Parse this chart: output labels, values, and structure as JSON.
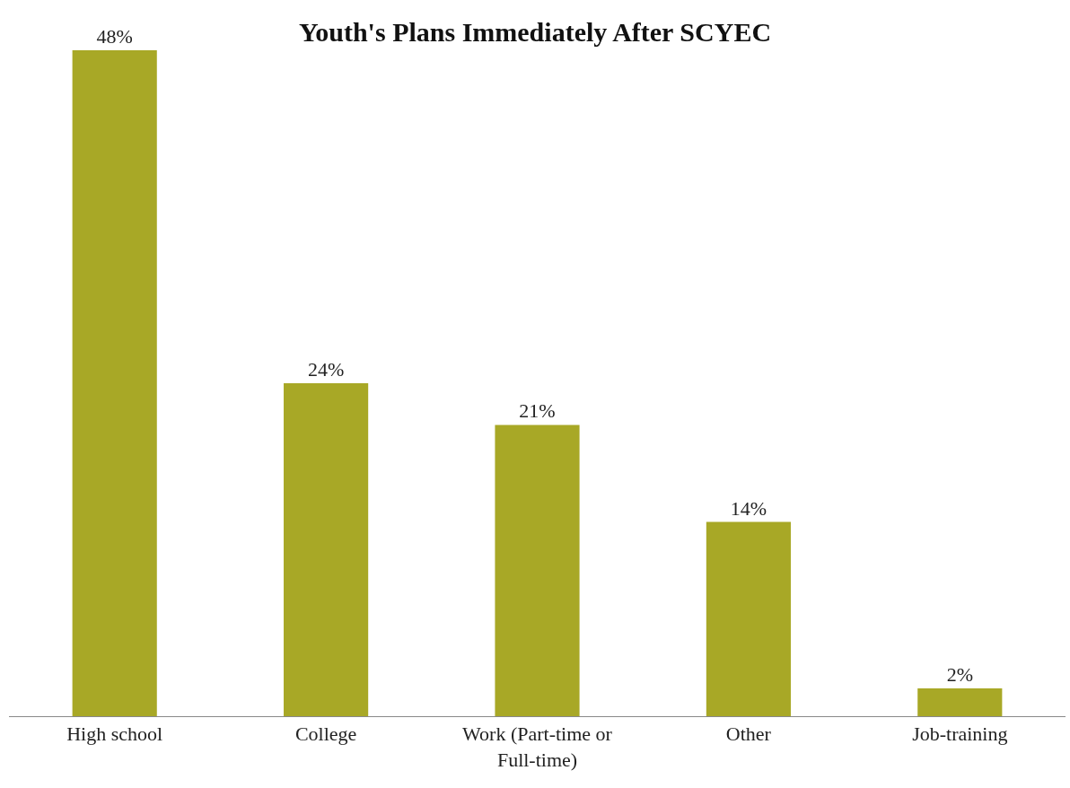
{
  "chart_data": {
    "type": "bar",
    "title": "Youth's Plans Immediately After SCYEC",
    "categories": [
      "High school",
      "College",
      "Work (Part-time or Full-time)",
      "Other",
      "Job-training"
    ],
    "values": [
      48,
      24,
      21,
      14,
      2
    ],
    "value_labels": [
      "48%",
      "24%",
      "21%",
      "14%",
      "2%"
    ],
    "color": "#a8a826",
    "grid": false,
    "legend": false
  }
}
